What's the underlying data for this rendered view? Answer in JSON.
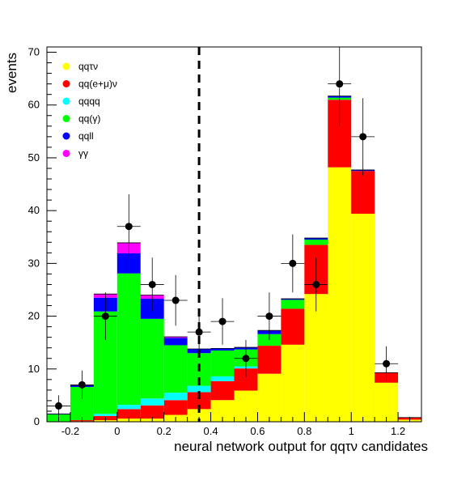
{
  "chart_data": {
    "type": "bar",
    "stacked": true,
    "xlabel": "neural network output for qqτν candidates",
    "ylabel": "events",
    "xlim": [
      -0.3,
      1.3
    ],
    "ylim": [
      0,
      71
    ],
    "bin_width": 0.1,
    "bin_low_edges": [
      -0.3,
      -0.2,
      -0.1,
      0.0,
      0.1,
      0.2,
      0.3,
      0.4,
      0.5,
      0.6,
      0.7,
      0.8,
      0.9,
      1.0,
      1.1,
      1.2
    ],
    "x_ticks": [
      -0.2,
      0,
      0.2,
      0.4,
      0.6,
      0.8,
      1,
      1.2
    ],
    "x_tick_labels": [
      "-0.2",
      "0",
      "0.2",
      "0.4",
      "0.6",
      "0.8",
      "1",
      "1.2"
    ],
    "y_ticks": [
      0,
      10,
      20,
      30,
      40,
      50,
      60,
      70
    ],
    "y_tick_labels": [
      "0",
      "10",
      "20",
      "30",
      "40",
      "50",
      "60",
      "70"
    ],
    "cut_line_x": 0.35,
    "series": [
      {
        "name": "qqτν",
        "color": "#ffff00",
        "values": [
          0.0,
          0.1,
          0.3,
          0.6,
          0.6,
          1.3,
          2.4,
          4.1,
          5.9,
          9.1,
          14.6,
          24.2,
          48.2,
          39.4,
          7.4,
          0.4
        ]
      },
      {
        "name": "qq(e+μ)ν",
        "color": "#ff0000",
        "values": [
          0.0,
          0.2,
          0.8,
          1.8,
          2.5,
          2.8,
          3.2,
          3.6,
          4.2,
          5.3,
          6.8,
          9.3,
          12.8,
          8.1,
          1.9,
          0.4
        ]
      },
      {
        "name": "qqqq",
        "color": "#00ffff",
        "values": [
          0.0,
          0.0,
          0.4,
          0.8,
          1.3,
          1.4,
          1.2,
          0.9,
          0.4,
          0.0,
          0.0,
          0.0,
          0.0,
          0.0,
          0.0,
          0.0
        ]
      },
      {
        "name": "qq(γ)",
        "color": "#00ff00",
        "values": [
          1.4,
          6.3,
          19.4,
          24.9,
          15.1,
          9.0,
          6.2,
          4.9,
          3.2,
          2.2,
          1.7,
          1.0,
          0.4,
          0.0,
          0.0,
          0.0
        ]
      },
      {
        "name": "qqll",
        "color": "#0000ff",
        "values": [
          0.1,
          0.3,
          2.6,
          3.8,
          3.8,
          1.4,
          0.8,
          0.4,
          0.4,
          0.7,
          0.2,
          0.3,
          0.3,
          0.2,
          0.0,
          0.0
        ]
      },
      {
        "name": "γγ",
        "color": "#ff00ff",
        "values": [
          0.0,
          0.0,
          0.7,
          2.0,
          0.7,
          0.2,
          0.0,
          0.0,
          0.0,
          0.0,
          0.0,
          0.0,
          0.0,
          0.0,
          0.0,
          0.0
        ]
      }
    ],
    "data_points": [
      {
        "x": -0.25,
        "y": 3,
        "err": 2
      },
      {
        "x": -0.15,
        "y": 7,
        "err": 2.7
      },
      {
        "x": -0.05,
        "y": 20,
        "err": 4.5
      },
      {
        "x": 0.05,
        "y": 37,
        "err": 6.1
      },
      {
        "x": 0.15,
        "y": 26,
        "err": 5.1
      },
      {
        "x": 0.25,
        "y": 23,
        "err": 4.8
      },
      {
        "x": 0.35,
        "y": 17,
        "err": 4.1
      },
      {
        "x": 0.45,
        "y": 19,
        "err": 4.4
      },
      {
        "x": 0.55,
        "y": 12,
        "err": 3.5
      },
      {
        "x": 0.65,
        "y": 20,
        "err": 4.5
      },
      {
        "x": 0.75,
        "y": 30,
        "err": 5.5
      },
      {
        "x": 0.85,
        "y": 26,
        "err": 5.1
      },
      {
        "x": 0.95,
        "y": 64,
        "err": 8
      },
      {
        "x": 1.05,
        "y": 54,
        "err": 7.3
      },
      {
        "x": 1.15,
        "y": 11,
        "err": 3.3
      }
    ],
    "legend_placement": "top-left"
  }
}
